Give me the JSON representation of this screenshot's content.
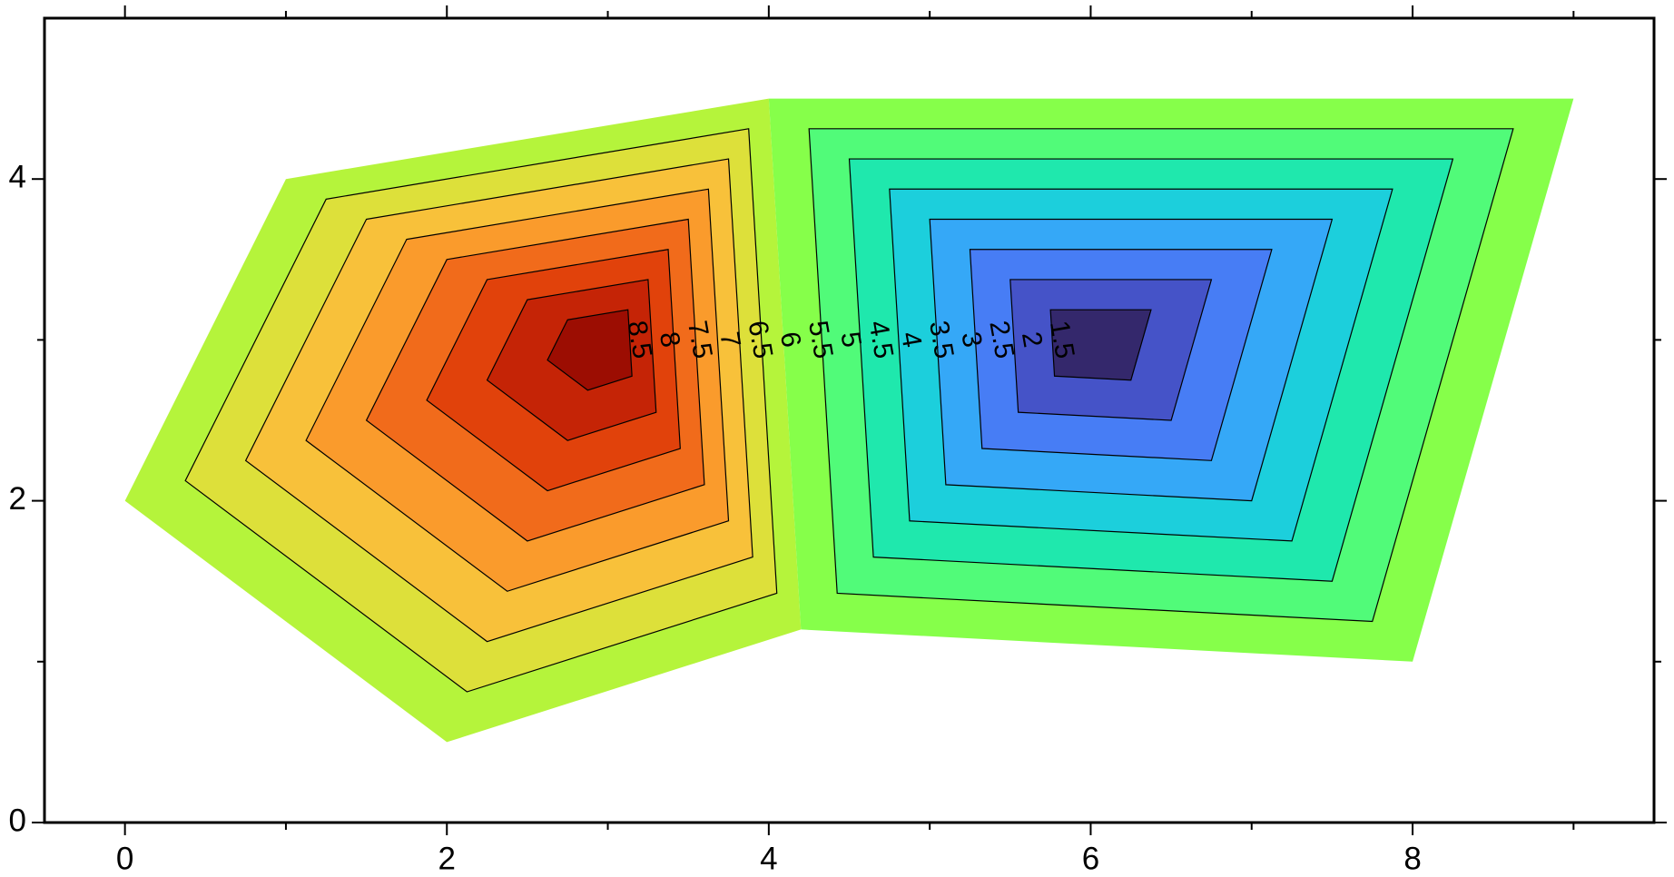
{
  "chart_data": {
    "type": "contour",
    "xlim": [
      -0.5,
      9.5
    ],
    "ylim": [
      0,
      5
    ],
    "xticks": [
      0,
      2,
      4,
      6,
      8
    ],
    "yticks": [
      0,
      2,
      4
    ],
    "xminor": [
      1,
      3,
      5,
      7,
      9
    ],
    "yminor": [
      1,
      3
    ],
    "grid": false,
    "levels": [
      1.5,
      2,
      2.5,
      3,
      3.5,
      4,
      4.5,
      5,
      5.5,
      6,
      6.5,
      7,
      7.5,
      8,
      8.5
    ],
    "band_colors": [
      "#34286c",
      "#4553c8",
      "#477df5",
      "#35a8f7",
      "#1ccfdc",
      "#1fe8ad",
      "#51fb79",
      "#86ff4a",
      "#b5f43b",
      "#dde03a",
      "#f8c13a",
      "#fa9b2c",
      "#f16b1b",
      "#e1420b",
      "#c52406",
      "#9c0d02"
    ],
    "regions": [
      {
        "x": 3,
        "y": 3,
        "z": 9,
        "ring_x": [
          1,
          4,
          4.2,
          2,
          0
        ],
        "ring_y": [
          4,
          4.5,
          1.2,
          0.5,
          2
        ],
        "ring_z": 5
      },
      {
        "x": 6,
        "y": 3,
        "z": 1,
        "ring_x": [
          4,
          9,
          8,
          4.2
        ],
        "ring_y": [
          4.5,
          4.5,
          1,
          1.2
        ],
        "ring_z": 5
      }
    ]
  }
}
